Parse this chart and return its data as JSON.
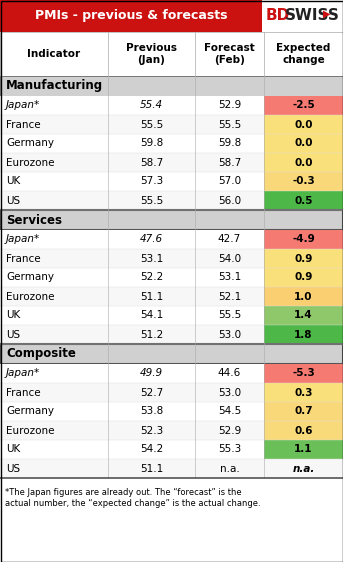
{
  "title": "PMIs - previous & forecasts",
  "header_bg": "#cc1111",
  "header_text_color": "#ffffff",
  "logo_bd_color": "#cc1111",
  "logo_swiss_color": "#222222",
  "col_headers": [
    "Indicator",
    "Previous\n(Jan)",
    "Forecast\n(Feb)",
    "Expected\nchange"
  ],
  "sections": [
    {
      "name": "Manufacturing",
      "rows": [
        {
          "indicator": "Japan*",
          "previous": "55.4",
          "forecast": "52.9",
          "change": "-2.5",
          "change_color": "#f47a72"
        },
        {
          "indicator": "France",
          "previous": "55.5",
          "forecast": "55.5",
          "change": "0.0",
          "change_color": "#f9e07a"
        },
        {
          "indicator": "Germany",
          "previous": "59.8",
          "forecast": "59.8",
          "change": "0.0",
          "change_color": "#f9e07a"
        },
        {
          "indicator": "Eurozone",
          "previous": "58.7",
          "forecast": "58.7",
          "change": "0.0",
          "change_color": "#f9e07a"
        },
        {
          "indicator": "UK",
          "previous": "57.3",
          "forecast": "57.0",
          "change": "-0.3",
          "change_color": "#f9d87a"
        },
        {
          "indicator": "US",
          "previous": "55.5",
          "forecast": "56.0",
          "change": "0.5",
          "change_color": "#4db848"
        }
      ]
    },
    {
      "name": "Services",
      "rows": [
        {
          "indicator": "Japan*",
          "previous": "47.6",
          "forecast": "42.7",
          "change": "-4.9",
          "change_color": "#f47a72"
        },
        {
          "indicator": "France",
          "previous": "53.1",
          "forecast": "54.0",
          "change": "0.9",
          "change_color": "#f9e07a"
        },
        {
          "indicator": "Germany",
          "previous": "52.2",
          "forecast": "53.1",
          "change": "0.9",
          "change_color": "#f9e07a"
        },
        {
          "indicator": "Eurozone",
          "previous": "51.1",
          "forecast": "52.1",
          "change": "1.0",
          "change_color": "#f9cf72"
        },
        {
          "indicator": "UK",
          "previous": "54.1",
          "forecast": "55.5",
          "change": "1.4",
          "change_color": "#8ec86a"
        },
        {
          "indicator": "US",
          "previous": "51.2",
          "forecast": "53.0",
          "change": "1.8",
          "change_color": "#4db848"
        }
      ]
    },
    {
      "name": "Composite",
      "rows": [
        {
          "indicator": "Japan*",
          "previous": "49.9",
          "forecast": "44.6",
          "change": "-5.3",
          "change_color": "#f47a72"
        },
        {
          "indicator": "France",
          "previous": "52.7",
          "forecast": "53.0",
          "change": "0.3",
          "change_color": "#f9e07a"
        },
        {
          "indicator": "Germany",
          "previous": "53.8",
          "forecast": "54.5",
          "change": "0.7",
          "change_color": "#f9d87a"
        },
        {
          "indicator": "Eurozone",
          "previous": "52.3",
          "forecast": "52.9",
          "change": "0.6",
          "change_color": "#f9da7a"
        },
        {
          "indicator": "UK",
          "previous": "54.2",
          "forecast": "55.3",
          "change": "1.1",
          "change_color": "#6bbf58"
        },
        {
          "indicator": "US",
          "previous": "51.1",
          "forecast": "n.a.",
          "change": "n.a.",
          "change_color": "#ffffff"
        }
      ]
    }
  ],
  "footnote": "*The Japan figures are already out. The “forecast” is the\nactual number, the “expected change” is the actual change.",
  "table_bg": "#ffffff",
  "section_header_bg": "#d0d0d0",
  "border_color": "#aaaaaa",
  "thick_border_color": "#555555"
}
